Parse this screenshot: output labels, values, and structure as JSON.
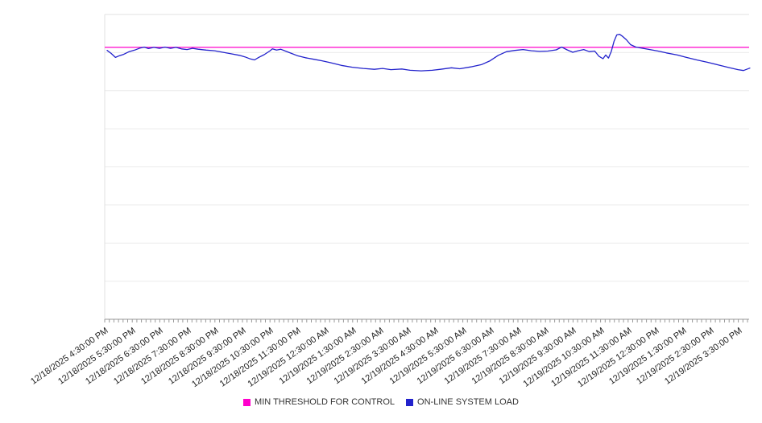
{
  "page": {
    "background": "#ffffff"
  },
  "chart_data": {
    "type": "line",
    "title": "",
    "legend_position": "bottom",
    "axis_color": "#999999",
    "gridline_color": "#ebebeb",
    "plot_border_color": "#e0e0e0",
    "x_axis": {
      "tick_interval_minutes": 10,
      "label_interval_minutes": 60,
      "labels": [
        "12/18/2025 4:30:00 PM",
        "12/18/2025 5:30:00 PM",
        "12/18/2025 6:30:00 PM",
        "12/18/2025 7:30:00 PM",
        "12/18/2025 8:30:00 PM",
        "12/18/2025 9:30:00 PM",
        "12/18/2025 10:30:00 PM",
        "12/18/2025 11:30:00 PM",
        "12/19/2025 12:30:00 AM",
        "12/19/2025 1:30:00 AM",
        "12/19/2025 2:30:00 AM",
        "12/19/2025 3:30:00 AM",
        "12/19/2025 4:30:00 AM",
        "12/19/2025 5:30:00 AM",
        "12/19/2025 6:30:00 AM",
        "12/19/2025 7:30:00 AM",
        "12/19/2025 8:30:00 AM",
        "12/19/2025 9:30:00 AM",
        "12/19/2025 10:30:00 AM",
        "12/19/2025 11:30:00 AM",
        "12/19/2025 12:30:00 PM",
        "12/19/2025 1:30:00 PM",
        "12/19/2025 2:30:00 PM",
        "12/19/2025 3:30:00 PM"
      ]
    },
    "y_axis": {
      "labels_visible": false,
      "normalized_range": [
        0,
        100
      ],
      "gridline_divisions": 8
    },
    "x_range_hours": [
      0,
      23.33
    ],
    "series": [
      {
        "name": "MIN THRESHOLD FOR CONTROL",
        "kind": "constant-threshold",
        "color": "#ff00cc",
        "value": 89.2
      },
      {
        "name": "ON-LINE SYSTEM LOAD",
        "kind": "line",
        "color": "#2222cc",
        "points_hours_value": [
          [
            0.0,
            88.2
          ],
          [
            0.15,
            87.2
          ],
          [
            0.3,
            85.9
          ],
          [
            0.45,
            86.5
          ],
          [
            0.6,
            86.9
          ],
          [
            0.8,
            87.8
          ],
          [
            1.0,
            88.3
          ],
          [
            1.2,
            89.0
          ],
          [
            1.35,
            89.3
          ],
          [
            1.5,
            88.8
          ],
          [
            1.7,
            89.2
          ],
          [
            1.9,
            88.9
          ],
          [
            2.1,
            89.3
          ],
          [
            2.3,
            88.9
          ],
          [
            2.5,
            89.2
          ],
          [
            2.7,
            88.7
          ],
          [
            2.9,
            88.5
          ],
          [
            3.1,
            88.9
          ],
          [
            3.3,
            88.6
          ],
          [
            3.6,
            88.3
          ],
          [
            3.9,
            88.1
          ],
          [
            4.2,
            87.6
          ],
          [
            4.5,
            87.1
          ],
          [
            4.8,
            86.6
          ],
          [
            5.0,
            86.1
          ],
          [
            5.2,
            85.4
          ],
          [
            5.35,
            85.1
          ],
          [
            5.5,
            85.9
          ],
          [
            5.7,
            86.8
          ],
          [
            5.9,
            88.0
          ],
          [
            6.0,
            88.7
          ],
          [
            6.15,
            88.3
          ],
          [
            6.3,
            88.6
          ],
          [
            6.5,
            87.9
          ],
          [
            6.7,
            87.2
          ],
          [
            6.9,
            86.5
          ],
          [
            7.2,
            85.8
          ],
          [
            7.5,
            85.3
          ],
          [
            7.8,
            84.8
          ],
          [
            8.1,
            84.2
          ],
          [
            8.5,
            83.3
          ],
          [
            8.9,
            82.7
          ],
          [
            9.3,
            82.3
          ],
          [
            9.7,
            82.0
          ],
          [
            10.0,
            82.3
          ],
          [
            10.3,
            81.9
          ],
          [
            10.7,
            82.1
          ],
          [
            11.0,
            81.7
          ],
          [
            11.4,
            81.5
          ],
          [
            11.8,
            81.7
          ],
          [
            12.1,
            82.0
          ],
          [
            12.5,
            82.5
          ],
          [
            12.8,
            82.2
          ],
          [
            13.2,
            82.8
          ],
          [
            13.6,
            83.6
          ],
          [
            13.9,
            84.8
          ],
          [
            14.2,
            86.6
          ],
          [
            14.5,
            87.8
          ],
          [
            14.8,
            88.2
          ],
          [
            15.1,
            88.5
          ],
          [
            15.4,
            88.1
          ],
          [
            15.7,
            87.9
          ],
          [
            16.0,
            88.0
          ],
          [
            16.3,
            88.4
          ],
          [
            16.5,
            89.3
          ],
          [
            16.7,
            88.4
          ],
          [
            16.9,
            87.6
          ],
          [
            17.1,
            88.1
          ],
          [
            17.3,
            88.5
          ],
          [
            17.5,
            87.8
          ],
          [
            17.7,
            88.0
          ],
          [
            17.85,
            86.3
          ],
          [
            18.0,
            85.5
          ],
          [
            18.1,
            86.7
          ],
          [
            18.2,
            85.7
          ],
          [
            18.3,
            87.9
          ],
          [
            18.4,
            91.2
          ],
          [
            18.5,
            93.3
          ],
          [
            18.6,
            93.5
          ],
          [
            18.7,
            92.9
          ],
          [
            18.85,
            91.7
          ],
          [
            19.0,
            90.1
          ],
          [
            19.2,
            89.3
          ],
          [
            19.45,
            88.9
          ],
          [
            19.7,
            88.5
          ],
          [
            20.0,
            88.0
          ],
          [
            20.3,
            87.4
          ],
          [
            20.7,
            86.7
          ],
          [
            21.0,
            86.0
          ],
          [
            21.4,
            85.1
          ],
          [
            21.8,
            84.3
          ],
          [
            22.2,
            83.4
          ],
          [
            22.6,
            82.5
          ],
          [
            22.9,
            81.9
          ],
          [
            23.1,
            81.6
          ],
          [
            23.33,
            82.4
          ]
        ]
      }
    ]
  }
}
